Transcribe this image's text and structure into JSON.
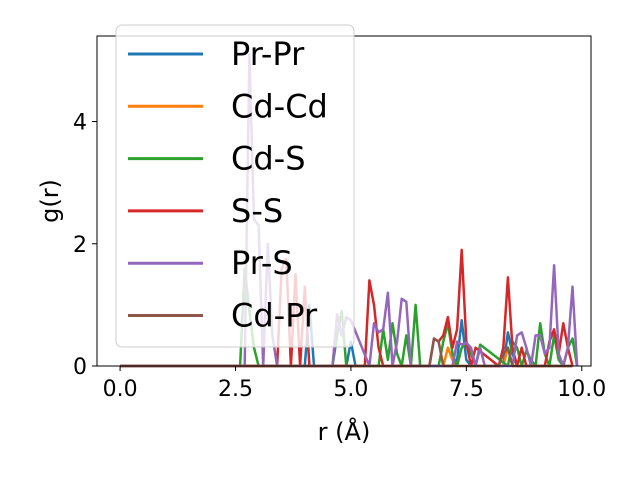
{
  "chart_data": {
    "type": "line",
    "title": "",
    "xlabel": "r (Å)",
    "ylabel": "g(r)",
    "xlim": [
      -0.5,
      10.2
    ],
    "ylim": [
      0,
      5.4
    ],
    "xticks": [
      "0.0",
      "2.5",
      "5.0",
      "7.5",
      "10.0"
    ],
    "xtick_values": [
      0,
      2.5,
      5,
      7.5,
      10
    ],
    "yticks": [
      "0",
      "2",
      "4"
    ],
    "ytick_values": [
      0,
      2,
      4
    ],
    "grid": false,
    "legend_position": "top-left",
    "series": [
      {
        "name": "Pr-Pr",
        "color": "#1f77b4",
        "x": [
          0,
          4.0,
          4.1,
          4.2,
          4.3,
          4.9,
          5.0,
          5.1,
          7.2,
          7.3,
          7.4,
          7.5,
          7.6,
          8.3,
          8.4,
          8.5,
          8.6,
          9.8
        ],
        "y": [
          0,
          0,
          1.0,
          0,
          0,
          0,
          0.4,
          0,
          0,
          0.1,
          0.75,
          0.1,
          0,
          0,
          0.55,
          0.2,
          0,
          0
        ]
      },
      {
        "name": "Cd-Cd",
        "color": "#ff7f0e",
        "x": [
          0,
          7.0,
          7.1,
          7.2,
          7.3,
          8.3,
          8.4,
          8.5,
          9.8
        ],
        "y": [
          0,
          0,
          0.3,
          0.1,
          0,
          0,
          0.3,
          0,
          0
        ]
      },
      {
        "name": "Cd-S",
        "color": "#2ca02c",
        "x": [
          0,
          2.6,
          2.7,
          2.8,
          2.9,
          3.0,
          4.6,
          4.7,
          4.8,
          4.9,
          5.6,
          5.7,
          5.8,
          5.9,
          6.0,
          6.1,
          6.2,
          6.3,
          6.4,
          6.5,
          6.9,
          7.0,
          7.1,
          7.2,
          7.3,
          7.4,
          7.5,
          7.6,
          7.7,
          7.8,
          8.4,
          8.5,
          8.6,
          8.7,
          8.8,
          8.9,
          9.0,
          9.1,
          9.2,
          9.3,
          9.4,
          9.5,
          9.6,
          9.7,
          9.8,
          9.9
        ],
        "y": [
          0,
          0,
          1.6,
          0.9,
          0.3,
          0,
          0,
          0.5,
          0.9,
          0,
          0,
          0.6,
          0.1,
          0.7,
          0.2,
          0,
          0.5,
          0,
          1.0,
          0,
          0,
          0.4,
          0.7,
          0.2,
          0,
          0.3,
          0.4,
          0.2,
          0,
          0.35,
          0,
          0.4,
          0.3,
          0,
          0.25,
          0.1,
          0,
          0.7,
          0.2,
          0,
          0.5,
          0.1,
          0,
          0.3,
          0.45,
          0
        ]
      },
      {
        "name": "S-S",
        "color": "#d62728",
        "x": [
          0,
          3.4,
          3.5,
          3.6,
          3.7,
          3.8,
          3.9,
          4.0,
          4.1,
          5.3,
          5.4,
          5.5,
          5.6,
          5.7,
          6.7,
          6.8,
          6.9,
          7.0,
          7.1,
          7.2,
          7.3,
          7.4,
          7.5,
          7.6,
          7.7,
          8.2,
          8.3,
          8.4,
          8.5,
          8.6,
          8.7,
          8.8,
          9.2,
          9.3,
          9.4,
          9.5,
          9.6,
          9.7,
          9.8
        ],
        "y": [
          0,
          0,
          1.6,
          1.75,
          0,
          1.5,
          0,
          1.3,
          0,
          0,
          1.4,
          1.0,
          0.3,
          0,
          0,
          0.45,
          0.4,
          0.5,
          0.8,
          0.3,
          0.6,
          1.9,
          0.4,
          0,
          0.3,
          0,
          0.3,
          1.45,
          0.3,
          0,
          0.3,
          0,
          0,
          0.4,
          0.6,
          0.2,
          0.7,
          0.3,
          0
        ]
      },
      {
        "name": "Pr-S",
        "color": "#9467bd",
        "x": [
          0,
          2.7,
          2.8,
          2.9,
          3.0,
          3.1,
          3.2,
          3.3,
          3.4,
          4.6,
          4.7,
          4.8,
          4.9,
          5.0,
          5.4,
          5.5,
          5.6,
          5.7,
          5.8,
          5.9,
          6.0,
          6.1,
          6.2,
          6.3,
          7.2,
          7.3,
          7.4,
          7.5,
          7.6,
          7.7,
          7.8,
          7.9,
          8.5,
          8.6,
          8.7,
          8.8,
          8.9,
          9.0,
          9.1,
          9.2,
          9.3,
          9.4,
          9.5,
          9.6,
          9.7,
          9.8,
          9.9
        ],
        "y": [
          0,
          0,
          5.1,
          2.4,
          2.3,
          0,
          2.0,
          0.5,
          0,
          0,
          0.85,
          0.5,
          0.8,
          0.75,
          0,
          0.7,
          0.55,
          0.6,
          1.2,
          0,
          0.4,
          1.1,
          1.05,
          0,
          0,
          0.4,
          0.35,
          0.38,
          0.3,
          0,
          0.3,
          0,
          0,
          0.5,
          0.55,
          0.3,
          0,
          0.5,
          0.5,
          0.2,
          0.3,
          1.65,
          0.2,
          0,
          0.3,
          1.3,
          0
        ]
      },
      {
        "name": "Cd-Pr",
        "color": "#8c564b",
        "x": [
          0,
          6.7,
          6.8,
          6.9,
          7.0,
          8.2,
          8.3,
          8.4,
          8.5,
          9.8
        ],
        "y": [
          0,
          0,
          0.45,
          0.4,
          0,
          0,
          0.2,
          0.3,
          0,
          0
        ]
      }
    ]
  }
}
